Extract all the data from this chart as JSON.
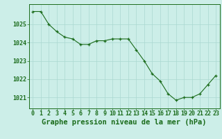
{
  "x": [
    0,
    1,
    2,
    3,
    4,
    5,
    6,
    7,
    8,
    9,
    10,
    11,
    12,
    13,
    14,
    15,
    16,
    17,
    18,
    19,
    20,
    21,
    22,
    23
  ],
  "y": [
    1025.7,
    1025.7,
    1025.0,
    1024.6,
    1024.3,
    1024.2,
    1023.9,
    1023.9,
    1024.1,
    1024.1,
    1024.2,
    1024.2,
    1024.2,
    1023.6,
    1023.0,
    1022.3,
    1021.9,
    1021.2,
    1020.85,
    1021.0,
    1021.0,
    1021.2,
    1021.7,
    1022.2
  ],
  "line_color": "#1a6b1a",
  "marker_color": "#1a6b1a",
  "bg_color": "#cceee8",
  "grid_color": "#aad8d0",
  "title": "Graphe pression niveau de la mer (hPa)",
  "ylim_min": 1020.4,
  "ylim_max": 1026.1,
  "yticks": [
    1021,
    1022,
    1023,
    1024,
    1025
  ],
  "xticks": [
    0,
    1,
    2,
    3,
    4,
    5,
    6,
    7,
    8,
    9,
    10,
    11,
    12,
    13,
    14,
    15,
    16,
    17,
    18,
    19,
    20,
    21,
    22,
    23
  ],
  "title_fontsize": 7.5,
  "tick_fontsize": 6,
  "title_color": "#1a6b1a",
  "axis_color": "#1a6b1a"
}
